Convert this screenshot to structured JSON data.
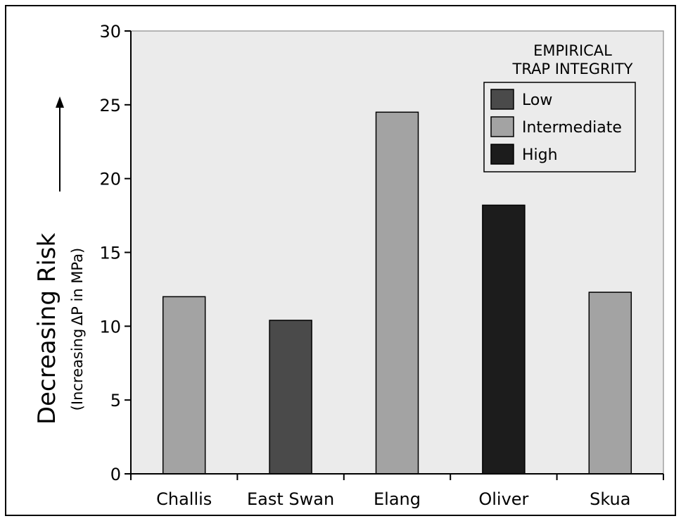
{
  "chart_data": {
    "type": "bar",
    "title": "",
    "xlabel": "",
    "ylabel": "Decreasing Risk",
    "ylabel_sub_prefix": "(Increasing",
    "ylabel_sub_suffix": "ΔP in MPa)",
    "ylim": [
      0,
      30
    ],
    "yticks": [
      0,
      5,
      10,
      15,
      20,
      25,
      30
    ],
    "grid": false,
    "legend_position": "top-right",
    "categories": [
      "Challis",
      "East Swan",
      "Elang",
      "Oliver",
      "Skua"
    ],
    "values": [
      12.0,
      10.4,
      24.5,
      18.2,
      12.3
    ],
    "integrity": [
      "Intermediate",
      "Low",
      "Intermediate",
      "High",
      "Intermediate"
    ],
    "legend": {
      "title_line1": "EMPIRICAL",
      "title_line2": "TRAP INTEGRITY",
      "entries": [
        {
          "label": "Low",
          "color": "#4a4a4a"
        },
        {
          "label": "Intermediate",
          "color": "#a3a3a3"
        },
        {
          "label": "High",
          "color": "#1c1c1c"
        }
      ]
    },
    "colors": {
      "Low": "#4a4a4a",
      "Intermediate": "#a3a3a3",
      "High": "#1c1c1c",
      "plot_background": "#ebebeb"
    }
  }
}
